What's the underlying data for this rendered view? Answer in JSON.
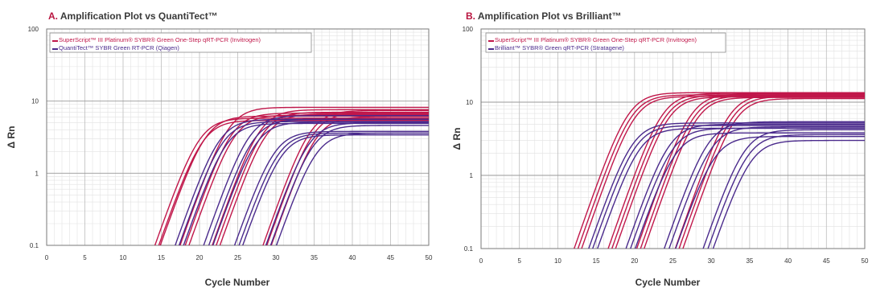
{
  "panels": [
    {
      "letter": "A.",
      "title": "Amplification Plot vs QuantiTect™"
    },
    {
      "letter": "B.",
      "title": "Amplification Plot vs Brilliant™"
    }
  ],
  "colors": {
    "invitrogen": "#c0174a",
    "competitor": "#4a2a8c",
    "grid": "#c8c8c8"
  },
  "chart_data": [
    {
      "type": "line",
      "title": "Amplification Plot vs QuantiTect™",
      "xlabel": "Cycle Number",
      "ylabel": "Δ Rn",
      "xlim": [
        0,
        50
      ],
      "ylim": [
        0.1,
        100
      ],
      "yscale": "log",
      "grid": true,
      "legend_position": "top-left",
      "x_ticks": [
        "0",
        "5",
        "10",
        "15",
        "20",
        "25",
        "30",
        "35",
        "40",
        "45",
        "50"
      ],
      "y_ticks": [
        "0.1",
        "1",
        "10",
        "100"
      ],
      "series": [
        {
          "name": "SuperScript™ III Platinum® SYBR® Green One-Step qRT-PCR (Invitrogen)",
          "color": "#c0174a",
          "curves": [
            {
              "ct": 20.0,
              "plateau": 5.8
            },
            {
              "ct": 20.4,
              "plateau": 5.4
            },
            {
              "ct": 20.8,
              "plateau": 6.2
            },
            {
              "ct": 23.8,
              "plateau": 8.2
            },
            {
              "ct": 24.2,
              "plateau": 6.8
            },
            {
              "ct": 24.6,
              "plateau": 6.4
            },
            {
              "ct": 27.9,
              "plateau": 7.6
            },
            {
              "ct": 28.3,
              "plateau": 7.0
            },
            {
              "ct": 28.7,
              "plateau": 6.6
            },
            {
              "ct": 34.5,
              "plateau": 7.4
            },
            {
              "ct": 34.9,
              "plateau": 6.9
            },
            {
              "ct": 35.3,
              "plateau": 6.1
            }
          ]
        },
        {
          "name": "QuantiTect™ SYBR Green RT-PCR (Qiagen)",
          "color": "#4a2a8c",
          "curves": [
            {
              "ct": 22.6,
              "plateau": 5.6
            },
            {
              "ct": 23.0,
              "plateau": 5.2
            },
            {
              "ct": 23.5,
              "plateau": 4.9
            },
            {
              "ct": 26.5,
              "plateau": 6.3
            },
            {
              "ct": 27.0,
              "plateau": 5.6
            },
            {
              "ct": 27.4,
              "plateau": 5.1
            },
            {
              "ct": 29.8,
              "plateau": 3.8
            },
            {
              "ct": 30.3,
              "plateau": 3.6
            },
            {
              "ct": 30.7,
              "plateau": 3.4
            },
            {
              "ct": 34.3,
              "plateau": 5.0
            },
            {
              "ct": 34.8,
              "plateau": 4.6
            },
            {
              "ct": 35.2,
              "plateau": 3.6
            }
          ]
        }
      ]
    },
    {
      "type": "line",
      "title": "Amplification Plot vs Brilliant™",
      "xlabel": "Cycle Number",
      "ylabel": "Δ Rn",
      "xlim": [
        0,
        50
      ],
      "ylim": [
        0.1,
        100
      ],
      "yscale": "log",
      "grid": true,
      "legend_position": "top-left",
      "x_ticks": [
        "0",
        "5",
        "10",
        "15",
        "20",
        "25",
        "30",
        "35",
        "40",
        "45",
        "50"
      ],
      "y_ticks": [
        "0.1",
        "1",
        "10",
        "100"
      ],
      "series": [
        {
          "name": "SuperScript™ III Platinum® SYBR® Green One-Step qRT-PCR (Invitrogen)",
          "color": "#c0174a",
          "curves": [
            {
              "ct": 19.2,
              "plateau": 13.5
            },
            {
              "ct": 19.6,
              "plateau": 12.6
            },
            {
              "ct": 20.0,
              "plateau": 12.0
            },
            {
              "ct": 23.6,
              "plateau": 13.2
            },
            {
              "ct": 24.0,
              "plateau": 12.4
            },
            {
              "ct": 24.4,
              "plateau": 11.8
            },
            {
              "ct": 27.3,
              "plateau": 13.0
            },
            {
              "ct": 27.7,
              "plateau": 12.2
            },
            {
              "ct": 28.1,
              "plateau": 11.6
            },
            {
              "ct": 32.3,
              "plateau": 12.8
            },
            {
              "ct": 32.7,
              "plateau": 12.0
            },
            {
              "ct": 33.1,
              "plateau": 11.2
            }
          ]
        },
        {
          "name": "Brilliant™ SYBR® Green qRT-PCR (Stratagene)",
          "color": "#4a2a8c",
          "curves": [
            {
              "ct": 19.7,
              "plateau": 5.2
            },
            {
              "ct": 20.1,
              "plateau": 4.8
            },
            {
              "ct": 20.6,
              "plateau": 4.4
            },
            {
              "ct": 24.5,
              "plateau": 5.0
            },
            {
              "ct": 24.9,
              "plateau": 4.4
            },
            {
              "ct": 25.3,
              "plateau": 3.8
            },
            {
              "ct": 29.6,
              "plateau": 5.4
            },
            {
              "ct": 30.0,
              "plateau": 4.6
            },
            {
              "ct": 30.4,
              "plateau": 3.4
            },
            {
              "ct": 34.3,
              "plateau": 4.2
            },
            {
              "ct": 34.7,
              "plateau": 3.6
            },
            {
              "ct": 35.1,
              "plateau": 3.0
            }
          ]
        }
      ]
    }
  ]
}
